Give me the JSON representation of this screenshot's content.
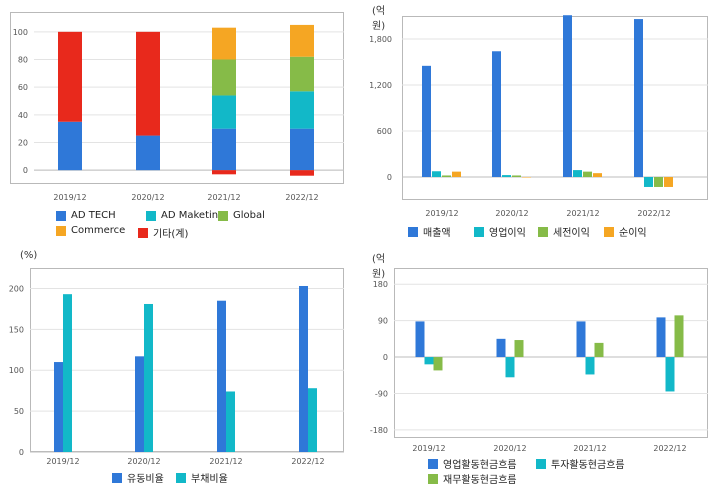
{
  "chart_data": [
    {
      "id": "c1",
      "type": "bar",
      "stacked": true,
      "unit": "",
      "categories": [
        "2019/12",
        "2020/12",
        "2021/12",
        "2022/12"
      ],
      "ylim": [
        -10,
        110
      ],
      "yticks": [
        0,
        20,
        40,
        60,
        80,
        100
      ],
      "series": [
        {
          "name": "AD TECH",
          "color": "#2f78d8",
          "values": [
            35,
            25,
            30,
            30
          ]
        },
        {
          "name": "AD Maketing",
          "color": "#12b8c8",
          "values": [
            0,
            0,
            24,
            27
          ]
        },
        {
          "name": "Global",
          "color": "#86bb48",
          "values": [
            0,
            0,
            26,
            25
          ]
        },
        {
          "name": "Commerce",
          "color": "#f5a623",
          "values": [
            0,
            0,
            23,
            23
          ]
        },
        {
          "name": "기타(계)",
          "color": "#e8291c",
          "values": [
            65,
            75,
            -3,
            -4
          ]
        }
      ]
    },
    {
      "id": "c2",
      "type": "bar",
      "unit": "(억원)",
      "categories": [
        "2019/12",
        "2020/12",
        "2021/12",
        "2022/12"
      ],
      "ylim": [
        -300,
        2100
      ],
      "yticks": [
        0,
        600,
        1200,
        1800
      ],
      "ytick_labels": [
        "0",
        "600",
        "1,200",
        "1,800"
      ],
      "series": [
        {
          "name": "매출액",
          "color": "#2f78d8",
          "values": [
            1450,
            1640,
            2110,
            2060
          ]
        },
        {
          "name": "영업이익",
          "color": "#12b8c8",
          "values": [
            75,
            25,
            90,
            -130
          ]
        },
        {
          "name": "세전이익",
          "color": "#86bb48",
          "values": [
            20,
            20,
            70,
            -130
          ]
        },
        {
          "name": "순이익",
          "color": "#f5a623",
          "values": [
            70,
            0,
            50,
            -130
          ]
        }
      ]
    },
    {
      "id": "c3",
      "type": "bar",
      "unit": "(%)",
      "categories": [
        "2019/12",
        "2020/12",
        "2021/12",
        "2022/12"
      ],
      "ylim": [
        0,
        225
      ],
      "yticks": [
        0,
        50,
        100,
        150,
        200
      ],
      "series": [
        {
          "name": "유동비율",
          "color": "#2f78d8",
          "values": [
            110,
            117,
            185,
            203
          ]
        },
        {
          "name": "부채비율",
          "color": "#12b8c8",
          "values": [
            193,
            181,
            74,
            78
          ]
        }
      ]
    },
    {
      "id": "c4",
      "type": "bar",
      "unit": "(억원)",
      "categories": [
        "2019/12",
        "2020/12",
        "2021/12",
        "2022/12"
      ],
      "ylim": [
        -200,
        220
      ],
      "yticks": [
        -180,
        -90,
        0,
        90,
        180
      ],
      "series": [
        {
          "name": "영업활동현금흐름",
          "color": "#2f78d8",
          "values": [
            88,
            45,
            88,
            98
          ]
        },
        {
          "name": "투자활동현금흐름",
          "color": "#12b8c8",
          "values": [
            -18,
            -50,
            -43,
            -85
          ]
        },
        {
          "name": "재무활동현금흐름",
          "color": "#86bb48",
          "values": [
            -33,
            42,
            35,
            103
          ]
        }
      ]
    }
  ]
}
